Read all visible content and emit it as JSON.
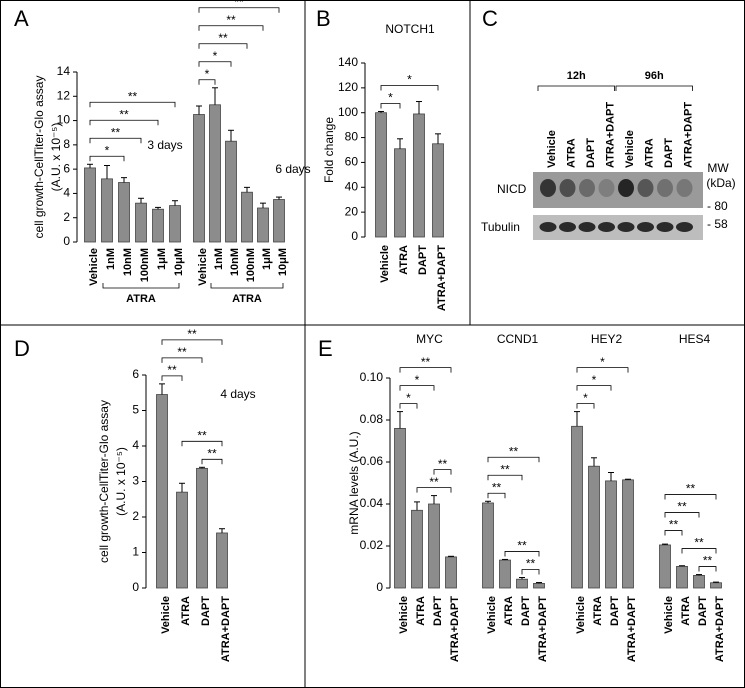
{
  "chart_data": [
    {
      "type": "bar",
      "panel": "A",
      "ylabel": [
        "cell growth-CellTiter-Glo assay",
        "(A.U. x 10⁻⁵)"
      ],
      "ylim": [
        0,
        14
      ],
      "yticks": [
        0,
        2,
        4,
        6,
        8,
        10,
        12,
        14
      ],
      "color": "#8c8c8c",
      "groups": [
        {
          "name": "3 days",
          "categories": [
            "Vehicle",
            "1nM",
            "10nM",
            "100nM",
            "1μM",
            "10μM"
          ],
          "values": [
            6.1,
            5.2,
            4.9,
            3.2,
            2.7,
            3.0
          ],
          "errors": [
            0.3,
            1.1,
            0.4,
            0.4,
            0.15,
            0.4
          ],
          "subgroup": {
            "label": "ATRA",
            "from": 1,
            "to": 5
          },
          "significance": [
            {
              "label": "*",
              "from": 0,
              "to": 2
            },
            {
              "label": "**",
              "from": 0,
              "to": 3
            },
            {
              "label": "**",
              "from": 0,
              "to": 4
            },
            {
              "label": "**",
              "from": 0,
              "to": 5
            }
          ]
        },
        {
          "name": "6 days",
          "categories": [
            "Vehicle",
            "1nM",
            "10nM",
            "100nM",
            "1μM",
            "10μM"
          ],
          "values": [
            10.5,
            11.3,
            8.3,
            4.1,
            2.8,
            3.5
          ],
          "errors": [
            0.7,
            1.4,
            0.9,
            0.4,
            0.4,
            0.2
          ],
          "subgroup": {
            "label": "ATRA",
            "from": 1,
            "to": 5
          },
          "significance": [
            {
              "label": "*",
              "from": 0,
              "to": 1
            },
            {
              "label": "*",
              "from": 0,
              "to": 2
            },
            {
              "label": "**",
              "from": 0,
              "to": 3
            },
            {
              "label": "**",
              "from": 0,
              "to": 4
            },
            {
              "label": "**",
              "from": 0,
              "to": 5
            }
          ]
        }
      ]
    },
    {
      "type": "bar",
      "panel": "B",
      "title": "NOTCH1",
      "ylabel": [
        "Fold change"
      ],
      "ylim": [
        0,
        140
      ],
      "yticks": [
        0,
        20,
        40,
        60,
        80,
        100,
        120,
        140
      ],
      "color": "#8c8c8c",
      "groups": [
        {
          "categories": [
            "Vehicle",
            "ATRA",
            "DAPT",
            "ATRA+DAPT"
          ],
          "values": [
            100,
            71,
            99,
            75
          ],
          "errors": [
            1,
            8,
            10,
            8
          ],
          "significance": [
            {
              "label": "*",
              "from": 0,
              "to": 1
            },
            {
              "label": "*",
              "from": 0,
              "to": 3
            }
          ]
        }
      ]
    },
    {
      "type": "bar",
      "panel": "D",
      "ylabel": [
        "cell growth-CellTiter-Glo assay",
        "(A.U. x 10⁻⁵)"
      ],
      "ylim": [
        0,
        6
      ],
      "yticks": [
        0,
        1,
        2,
        3,
        4,
        5,
        6
      ],
      "color": "#8c8c8c",
      "groups": [
        {
          "name": "4 days",
          "categories": [
            "Vehicle",
            "ATRA",
            "DAPT",
            "ATRA+DAPT"
          ],
          "values": [
            5.45,
            2.7,
            3.37,
            1.55
          ],
          "errors": [
            0.3,
            0.25,
            0.03,
            0.12
          ],
          "significance": [
            {
              "label": "**",
              "from": 2,
              "to": 3
            },
            {
              "label": "**",
              "from": 1,
              "to": 3
            },
            {
              "label": "**",
              "from": 0,
              "to": 1
            },
            {
              "label": "**",
              "from": 0,
              "to": 2
            },
            {
              "label": "**",
              "from": 0,
              "to": 3
            }
          ]
        }
      ]
    },
    {
      "type": "bar",
      "panel": "E",
      "ylabel": [
        "mRNA levels (A.U.)"
      ],
      "ylim": [
        0,
        0.1
      ],
      "yticks": [
        0,
        0.02,
        0.04,
        0.06,
        0.08,
        {
          "value": 0.1,
          "label": "0.10"
        }
      ],
      "color": "#8c8c8c",
      "groups": [
        {
          "name": "MYC",
          "categories": [
            "Vehicle",
            "ATRA",
            "DAPT",
            "ATRA+DAPT"
          ],
          "values": [
            0.076,
            0.037,
            0.04,
            0.0148
          ],
          "errors": [
            0.008,
            0.004,
            0.004,
            0.0003
          ],
          "significance": [
            {
              "label": "**",
              "from": 1,
              "to": 3
            },
            {
              "label": "**",
              "from": 2,
              "to": 3
            },
            {
              "label": "*",
              "from": 0,
              "to": 1
            },
            {
              "label": "*",
              "from": 0,
              "to": 2
            },
            {
              "label": "**",
              "from": 0,
              "to": 3
            }
          ]
        },
        {
          "name": "CCND1",
          "categories": [
            "Vehicle",
            "ATRA",
            "DAPT",
            "ATRA+DAPT"
          ],
          "values": [
            0.0405,
            0.0133,
            0.0042,
            0.0022
          ],
          "errors": [
            0.0008,
            0.0003,
            0.0008,
            0.0004
          ],
          "significance": [
            {
              "label": "**",
              "from": 2,
              "to": 3
            },
            {
              "label": "**",
              "from": 1,
              "to": 3
            },
            {
              "label": "**",
              "from": 0,
              "to": 1
            },
            {
              "label": "**",
              "from": 0,
              "to": 2
            },
            {
              "label": "**",
              "from": 0,
              "to": 3
            }
          ]
        },
        {
          "name": "HEY2",
          "categories": [
            "Vehicle",
            "ATRA",
            "DAPT",
            "ATRA+DAPT"
          ],
          "values": [
            0.077,
            0.058,
            0.051,
            0.0515
          ],
          "errors": [
            0.007,
            0.004,
            0.004,
            0.0003
          ],
          "significance": [
            {
              "label": "*",
              "from": 0,
              "to": 1
            },
            {
              "label": "*",
              "from": 0,
              "to": 2
            },
            {
              "label": "*",
              "from": 0,
              "to": 3
            }
          ]
        },
        {
          "name": "HES4",
          "categories": [
            "Vehicle",
            "ATRA",
            "DAPT",
            "ATRA+DAPT"
          ],
          "values": [
            0.0205,
            0.0103,
            0.006,
            0.0025
          ],
          "errors": [
            0.0004,
            0.0003,
            0.0004,
            0.0003
          ],
          "significance": [
            {
              "label": "**",
              "from": 2,
              "to": 3
            },
            {
              "label": "**",
              "from": 1,
              "to": 3
            },
            {
              "label": "**",
              "from": 0,
              "to": 1
            },
            {
              "label": "**",
              "from": 0,
              "to": 2
            },
            {
              "label": "**",
              "from": 0,
              "to": 3
            }
          ]
        }
      ]
    }
  ],
  "blot": {
    "panel": "C",
    "timepoints": [
      "12h",
      "96h"
    ],
    "lanes": [
      "Vehicle",
      "ATRA",
      "DAPT",
      "ATRA+DAPT",
      "Vehicle",
      "ATRA",
      "DAPT",
      "ATRA+DAPT"
    ],
    "rows": [
      "NICD",
      "Tubulin"
    ],
    "mw_title": [
      "MW",
      "(kDa)"
    ],
    "mw_markers": [
      "- 80",
      "- 58"
    ]
  }
}
